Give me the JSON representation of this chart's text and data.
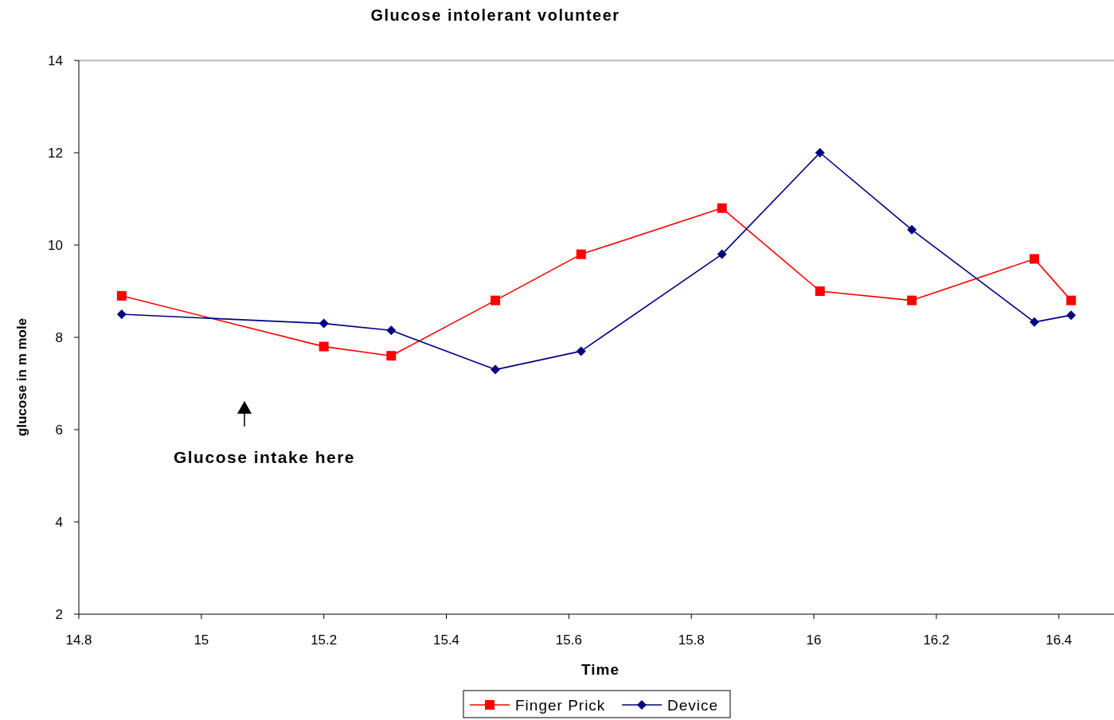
{
  "chart_data": {
    "type": "line",
    "title": "Glucose intolerant volunteer",
    "xlabel": "Time",
    "ylabel": "glucose in m mole",
    "xlim": [
      14.8,
      16.49
    ],
    "xticks": [
      14.8,
      15,
      15.2,
      15.4,
      15.6,
      15.8,
      16,
      16.2,
      16.4
    ],
    "ylim": [
      2,
      14
    ],
    "yticks": [
      2,
      4,
      6,
      8,
      10,
      12,
      14
    ],
    "x": [
      14.87,
      15.2,
      15.31,
      15.48,
      15.62,
      15.85,
      16.01,
      16.16,
      16.36,
      16.42
    ],
    "series": [
      {
        "name": "Finger Prick",
        "color": "#ff0000",
        "marker": "square",
        "values": [
          8.9,
          7.8,
          7.6,
          8.8,
          9.8,
          10.8,
          9.0,
          8.8,
          9.7,
          8.8
        ]
      },
      {
        "name": "Device",
        "color": "#000080",
        "marker": "diamond",
        "values": [
          8.5,
          8.3,
          8.15,
          7.3,
          7.7,
          9.8,
          12.0,
          10.33,
          8.33,
          8.48
        ]
      }
    ],
    "annotations": [
      "Glucose intake here"
    ],
    "grid": false,
    "legend": "bottom"
  }
}
